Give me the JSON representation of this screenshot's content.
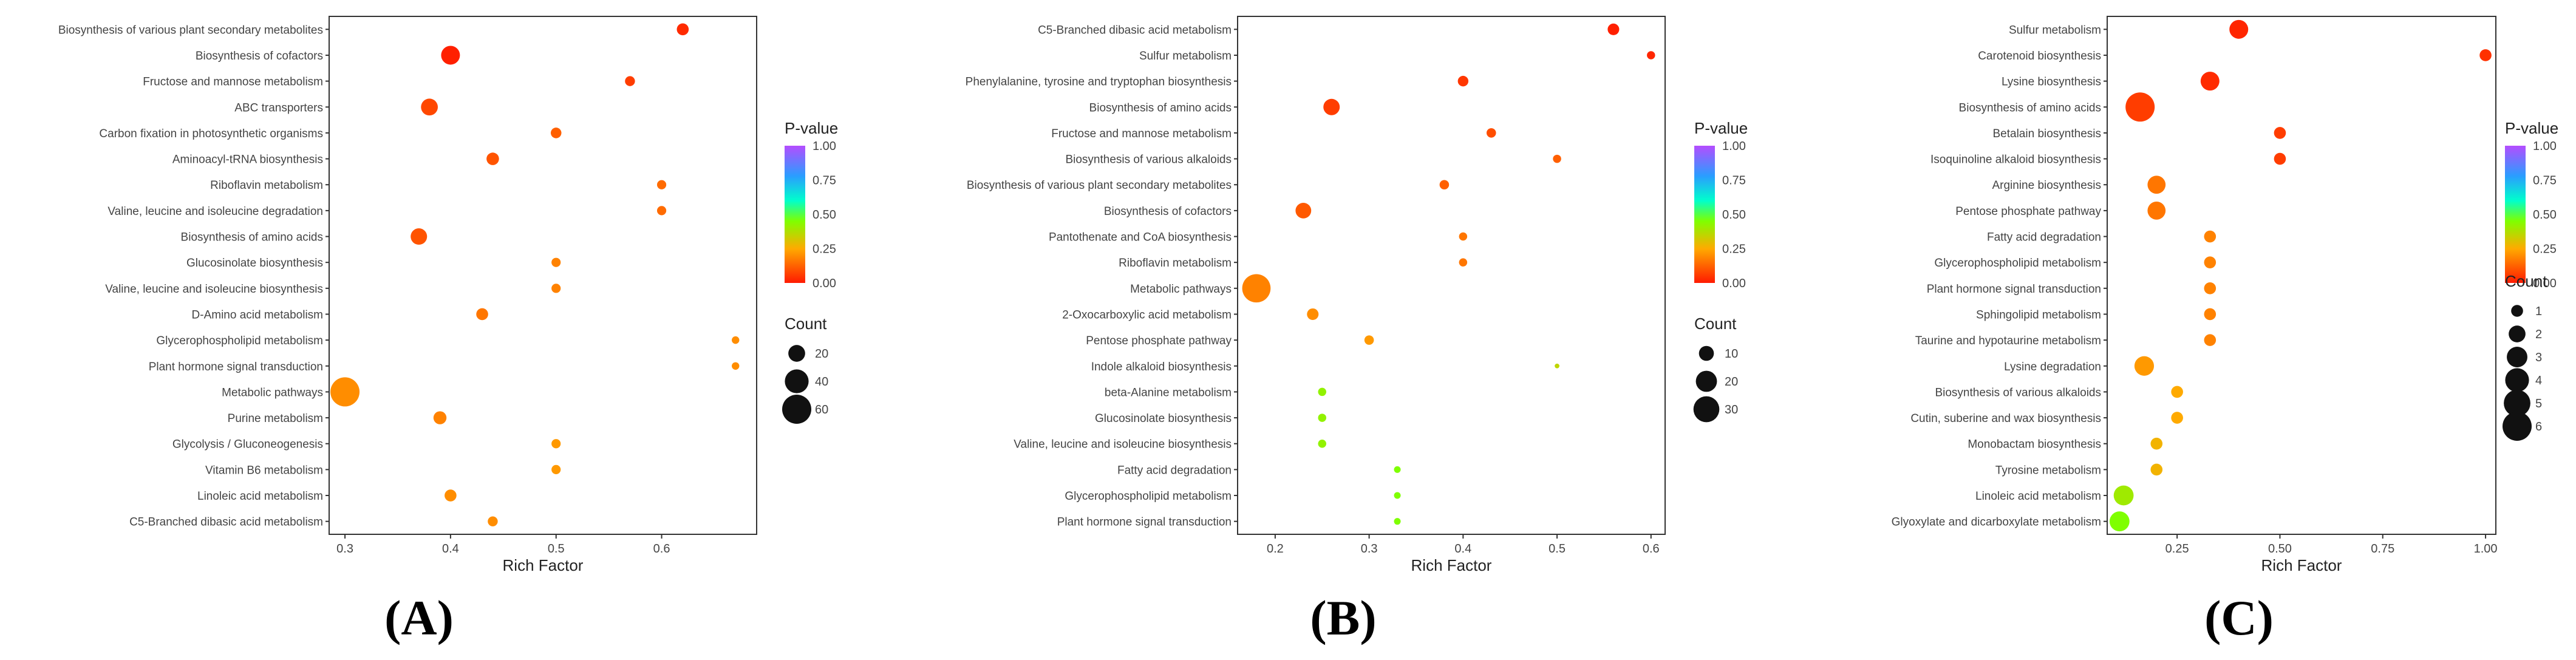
{
  "figure": {
    "panels": [
      "(A)",
      "(B)",
      "(C)"
    ]
  },
  "chart_data": [
    {
      "type": "scatter",
      "panel": "(A)",
      "xlabel": "Rich Factor",
      "xlim": [
        0.285,
        0.69
      ],
      "xticks": [
        0.3,
        0.4,
        0.5,
        0.6
      ],
      "xtick_labels": [
        "0.3",
        "0.4",
        "0.5",
        "0.6"
      ],
      "grid": false,
      "legend_position": "right",
      "color_legend": {
        "title": "P-value",
        "ticks": [
          "1.00",
          "0.75",
          "0.50",
          "0.25",
          "0.00"
        ]
      },
      "size_legend": {
        "title": "Count",
        "values": [
          20,
          40,
          60
        ],
        "labels": [
          "20",
          "40",
          "60"
        ]
      },
      "size_range": [
        0,
        60
      ],
      "categories": [
        "Biosynthesis of various plant secondary metabolites",
        "Biosynthesis of cofactors",
        "Fructose and mannose metabolism",
        "ABC transporters",
        "Carbon fixation in photosynthetic organisms",
        "Aminoacyl-tRNA biosynthesis",
        "Riboflavin metabolism",
        "Valine, leucine and isoleucine degradation",
        "Biosynthesis of amino acids",
        "Glucosinolate biosynthesis",
        "Valine, leucine and isoleucine biosynthesis",
        "D-Amino acid metabolism",
        "Glycerophospholipid metabolism",
        "Plant hormone signal transduction",
        "Metabolic pathways",
        "Purine metabolism",
        "Glycolysis / Gluconeogenesis",
        "Vitamin B6 metabolism",
        "Linoleic acid metabolism",
        "C5-Branched dibasic acid metabolism"
      ],
      "rich_factor": [
        0.62,
        0.4,
        0.57,
        0.38,
        0.5,
        0.44,
        0.6,
        0.6,
        0.37,
        0.5,
        0.5,
        0.43,
        0.67,
        0.67,
        0.3,
        0.39,
        0.5,
        0.5,
        0.4,
        0.44
      ],
      "count": [
        10,
        25,
        7,
        20,
        8,
        11,
        6,
        6,
        19,
        6,
        6,
        10,
        4,
        4,
        60,
        12,
        6,
        6,
        10,
        7
      ],
      "pvalue": [
        0.03,
        0.01,
        0.06,
        0.08,
        0.12,
        0.1,
        0.14,
        0.14,
        0.1,
        0.18,
        0.18,
        0.16,
        0.2,
        0.2,
        0.2,
        0.18,
        0.22,
        0.22,
        0.2,
        0.2
      ]
    },
    {
      "type": "scatter",
      "panel": "(B)",
      "xlabel": "Rich Factor",
      "xlim": [
        0.16,
        0.615
      ],
      "xticks": [
        0.2,
        0.3,
        0.4,
        0.5,
        0.6
      ],
      "xtick_labels": [
        "0.2",
        "0.3",
        "0.4",
        "0.5",
        "0.6"
      ],
      "grid": false,
      "legend_position": "right",
      "color_legend": {
        "title": "P-value",
        "ticks": [
          "1.00",
          "0.75",
          "0.50",
          "0.25",
          "0.00"
        ]
      },
      "size_legend": {
        "title": "Count",
        "values": [
          10,
          20,
          30
        ],
        "labels": [
          "10",
          "20",
          "30"
        ]
      },
      "size_range": [
        0,
        38
      ],
      "categories": [
        "C5-Branched dibasic acid metabolism",
        "Sulfur metabolism",
        "Phenylalanine, tyrosine and tryptophan biosynthesis",
        "Biosynthesis of amino acids",
        "Fructose and mannose metabolism",
        "Biosynthesis of various alkaloids",
        "Biosynthesis of various plant secondary metabolites",
        "Biosynthesis of cofactors",
        "Pantothenate and CoA biosynthesis",
        "Riboflavin metabolism",
        "Metabolic pathways",
        "2-Oxocarboxylic acid metabolism",
        "Pentose phosphate pathway",
        "Indole alkaloid biosynthesis",
        "beta-Alanine metabolism",
        "Glucosinolate biosynthesis",
        "Valine, leucine and isoleucine biosynthesis",
        "Fatty acid degradation",
        "Glycerophospholipid metabolism",
        "Plant hormone signal transduction"
      ],
      "rich_factor": [
        0.56,
        0.6,
        0.4,
        0.26,
        0.43,
        0.5,
        0.38,
        0.23,
        0.4,
        0.4,
        0.18,
        0.24,
        0.3,
        0.5,
        0.25,
        0.25,
        0.25,
        0.33,
        0.33,
        0.33
      ],
      "count": [
        6,
        3,
        5,
        12,
        4,
        3,
        4,
        11,
        3,
        3,
        36,
        6,
        4,
        1,
        3,
        3,
        3,
        2,
        2,
        2
      ],
      "pvalue": [
        0.01,
        0.02,
        0.05,
        0.06,
        0.09,
        0.12,
        0.12,
        0.11,
        0.16,
        0.16,
        0.18,
        0.2,
        0.22,
        0.35,
        0.42,
        0.42,
        0.42,
        0.45,
        0.45,
        0.45
      ]
    },
    {
      "type": "scatter",
      "panel": "(C)",
      "xlabel": "Rich Factor",
      "xlim": [
        0.08,
        1.025
      ],
      "xticks": [
        0.25,
        0.5,
        0.75,
        1.0
      ],
      "xtick_labels": [
        "0.25",
        "0.50",
        "0.75",
        "1.00"
      ],
      "grid": false,
      "legend_position": "right",
      "color_legend": {
        "title": "P-value",
        "ticks": [
          "1.00",
          "0.75",
          "0.50",
          "0.25",
          "0.00"
        ]
      },
      "size_legend": {
        "title": "Count",
        "values": [
          1,
          2,
          3,
          4,
          5,
          6
        ],
        "labels": [
          "1",
          "2",
          "3",
          "4",
          "5",
          "6"
        ]
      },
      "size_range": [
        0,
        6
      ],
      "categories": [
        "Sulfur metabolism",
        "Carotenoid biosynthesis",
        "Lysine biosynthesis",
        "Biosynthesis of amino acids",
        "Betalain biosynthesis",
        "Isoquinoline alkaloid biosynthesis",
        "Arginine biosynthesis",
        "Pentose phosphate pathway",
        "Fatty acid degradation",
        "Glycerophospholipid metabolism",
        "Plant hormone signal transduction",
        "Sphingolipid metabolism",
        "Taurine and hypotaurine metabolism",
        "Lysine degradation",
        "Biosynthesis of various alkaloids",
        "Cutin, suberine and wax biosynthesis",
        "Monobactam biosynthesis",
        "Tyrosine metabolism",
        "Linoleic acid metabolism",
        "Glyoxylate and dicarboxylate metabolism"
      ],
      "rich_factor": [
        0.4,
        1.0,
        0.33,
        0.16,
        0.5,
        0.5,
        0.2,
        0.2,
        0.33,
        0.33,
        0.33,
        0.33,
        0.33,
        0.17,
        0.25,
        0.25,
        0.2,
        0.2,
        0.12,
        0.11
      ],
      "count": [
        2.5,
        1,
        2.5,
        6,
        1,
        1,
        2.3,
        2.3,
        1,
        1,
        1,
        1,
        1,
        2.7,
        1,
        1,
        1,
        1,
        2.8,
        2.8
      ],
      "pvalue": [
        0.02,
        0.04,
        0.03,
        0.06,
        0.06,
        0.06,
        0.16,
        0.16,
        0.18,
        0.18,
        0.18,
        0.18,
        0.18,
        0.22,
        0.25,
        0.25,
        0.27,
        0.27,
        0.4,
        0.45
      ]
    }
  ]
}
